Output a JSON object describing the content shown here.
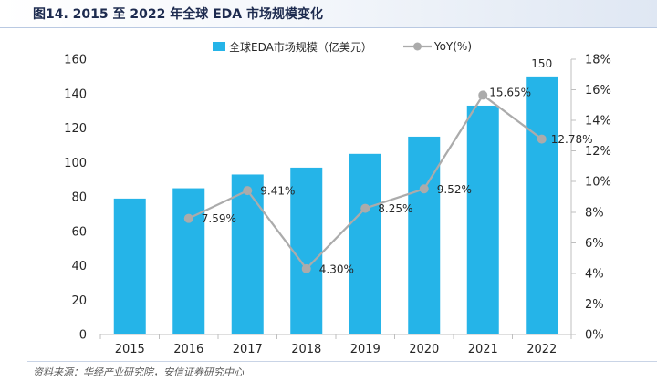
{
  "source": "资料来源：华经产业研究院，安信证券研究中心",
  "chart_data": {
    "type": "bar",
    "title": "图14. 2015 至 2022 年全球 EDA 市场规模变化",
    "categories": [
      "2015",
      "2016",
      "2017",
      "2018",
      "2019",
      "2020",
      "2021",
      "2022"
    ],
    "series": [
      {
        "name": "全球EDA市场规模（亿美元）",
        "type": "bar",
        "axis": "left",
        "color": "#25b4e8",
        "values": [
          79,
          85,
          93,
          97,
          105,
          115,
          133,
          150
        ],
        "labels": [
          null,
          null,
          null,
          null,
          null,
          null,
          null,
          "150"
        ]
      },
      {
        "name": "YoY(%)",
        "type": "line",
        "axis": "right",
        "color": "#ababab",
        "values": [
          null,
          7.59,
          9.41,
          4.3,
          8.25,
          9.52,
          15.65,
          12.78
        ],
        "labels": [
          null,
          "7.59%",
          "9.41%",
          "4.30%",
          "8.25%",
          "9.52%",
          "15.65%",
          "12.78%"
        ]
      }
    ],
    "y_left": {
      "min": 0,
      "max": 160,
      "ticks": [
        0,
        20,
        40,
        60,
        80,
        100,
        120,
        140,
        160
      ]
    },
    "y_right": {
      "min": 0,
      "max": 18,
      "ticks": [
        0,
        2,
        4,
        6,
        8,
        10,
        12,
        14,
        16,
        18
      ],
      "tick_labels": [
        "0%",
        "2%",
        "4%",
        "6%",
        "8%",
        "10%",
        "12%",
        "14%",
        "16%",
        "18%"
      ]
    },
    "grid": false,
    "legend": "top"
  }
}
